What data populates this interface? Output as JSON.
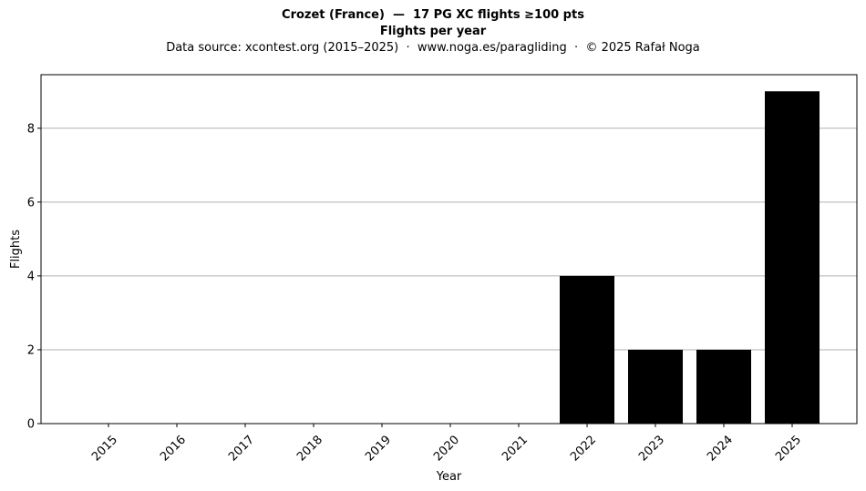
{
  "chart_data": {
    "type": "bar",
    "title": "Crozet (France)  —  17 PG XC flights ≥100 pts",
    "subtitle_bold": "Flights per year",
    "source": "Data source: xcontest.org (2015–2025)  ·  www.noga.es/paragliding  ·  © 2025 Rafał Noga",
    "xlabel": "Year",
    "ylabel": "Flights",
    "categories": [
      "2015",
      "2016",
      "2017",
      "2018",
      "2019",
      "2020",
      "2021",
      "2022",
      "2023",
      "2024",
      "2025"
    ],
    "values": [
      0,
      0,
      0,
      0,
      0,
      0,
      0,
      4,
      2,
      2,
      9
    ],
    "ylim": [
      0,
      9.45
    ],
    "yticks": [
      0,
      2,
      4,
      6,
      8
    ],
    "grid": "horizontal",
    "bar_color": "#000000",
    "grid_color": "#b0b0b0"
  }
}
